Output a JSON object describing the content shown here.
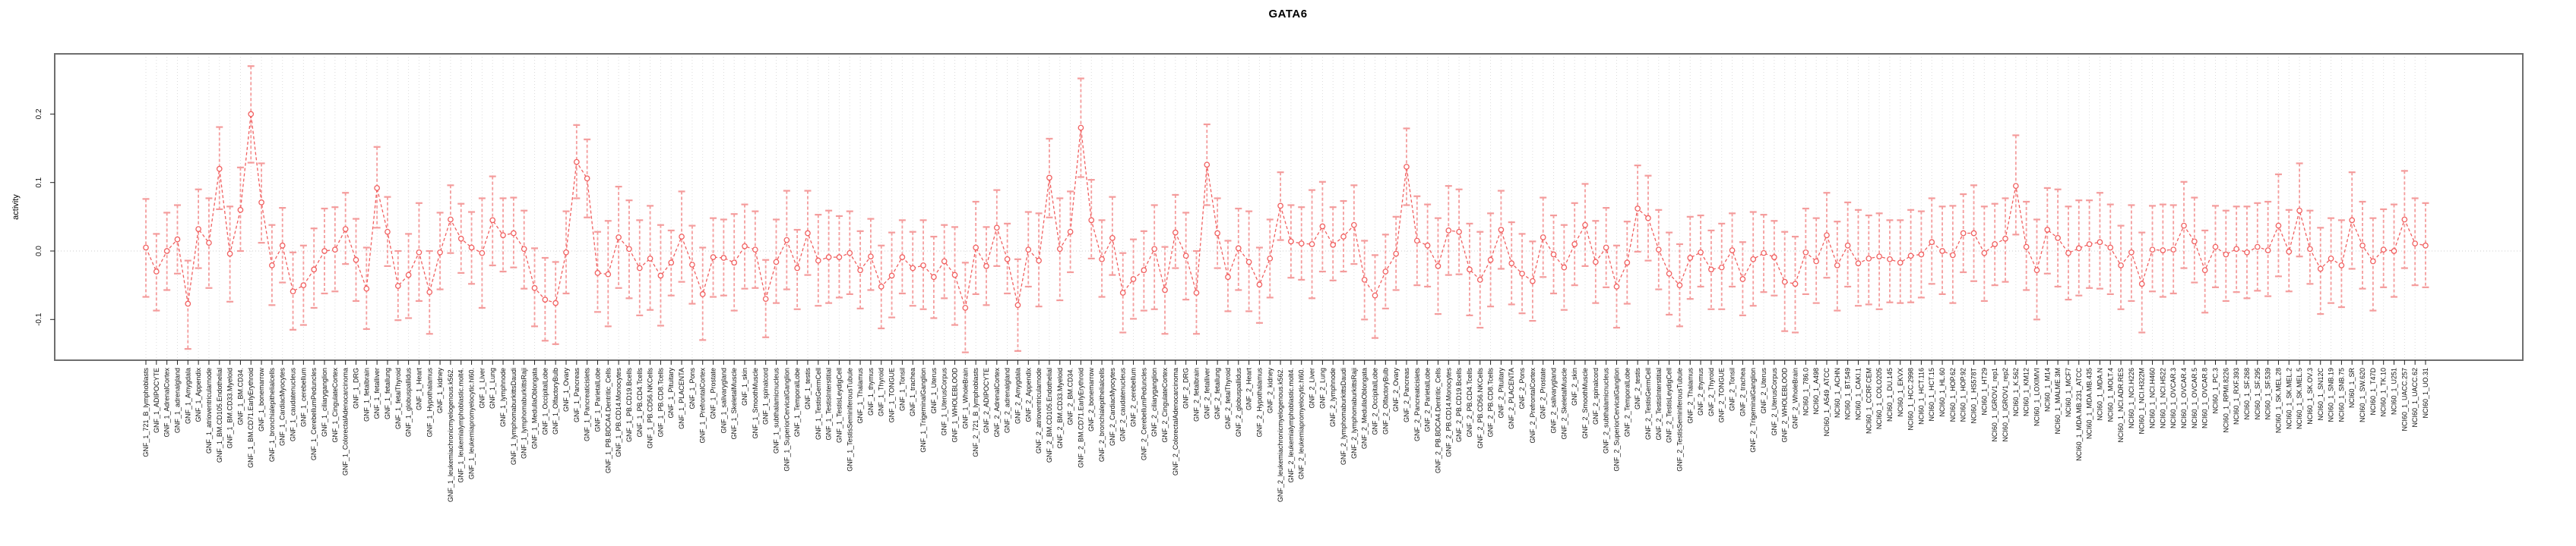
{
  "chart_data": {
    "type": "line",
    "title": "GATA6",
    "xlabel": "",
    "ylabel": "activity",
    "yticks": [
      -0.1,
      0.0,
      0.1,
      0.2
    ],
    "ylim": [
      -0.159,
      0.288
    ],
    "legend": "none",
    "grid": "dotted vertical line per category; dotted horizontal line at 0",
    "point_style": "open circle with dashed error bars (caps)",
    "colors": {
      "series": "#f16060",
      "error_bar": "#f49c9c",
      "grid": "#dcdcdc",
      "zero_line": "#d8d8d8",
      "box": "#6e6e6e",
      "tick": "#222222",
      "label": "#111111"
    },
    "categories": [
      "GNF_1_721_B_lymphoblasts",
      "GNF_1_ADIPOCYTE",
      "GNF_1_AdrenalCortex",
      "GNF_1_adrenalgland",
      "GNF_1_Amygdala",
      "GNF_1_Appendix",
      "GNF_1_atrioventricularnode",
      "GNF_1_BM.CD105.Endothelial",
      "GNF_1_BM.CD33.Myeloid",
      "GNF_1_BM.CD34.",
      "GNF_1_BM.CD71.EarlyErythroid",
      "GNF_1_bonemarrow",
      "GNF_1_bronchialepithelialcells",
      "GNF_1_CardiacMyocytes",
      "GNF_1_caudatenucleus",
      "GNF_1_cerebellum",
      "GNF_1_CerebellumPeduncles",
      "GNF_1_ciliaryganglion",
      "GNF_1_CingulateCortex",
      "GNF_1_ColorectalAdenocarcinoma",
      "GNF_1_DRG",
      "GNF_1_fetalbrain",
      "GNF_1_fetalliver",
      "GNF_1_fetallung",
      "GNF_1_fetalThyroid",
      "GNF_1_globuspallidus",
      "GNF_1_Heart",
      "GNF_1_Hypothalamus",
      "GNF_1_kidney",
      "GNF_1_leukemiachronicmyelogenous.k562.",
      "GNF_1_leukemialymphoblastic.molt4.",
      "GNF_1_leukemiapromyelocytic.hl60.",
      "GNF_1_Liver",
      "GNF_1_Lung",
      "GNF_1_lymphnode",
      "GNF_1_lymphomaburkittsDaudi",
      "GNF_1_lymphomaburkittsRaji",
      "GNF_1_MedullaOblongata",
      "GNF_1_OccipitalLobe",
      "GNF_1_OlfactoryBulb",
      "GNF_1_Ovary",
      "GNF_1_Pancreas",
      "GNF_1_Pancreaticislets",
      "GNF_1_ParietalLobe",
      "GNF_1_PB.BDCA4.Dentritic_Cells",
      "GNF_1_PB.CD14.Monocytes",
      "GNF_1_PB.CD19.Bcells",
      "GNF_1_PB.CD4.Tcells",
      "GNF_1_PB.CD56.NKCells",
      "GNF_1_PB.CD8.Tcells",
      "GNF_1_Pituitary",
      "GNF_1_PLACENTA",
      "GNF_1_Pons",
      "GNF_1_PrefrontalCortex",
      "GNF_1_Prostate",
      "GNF_1_salivarygland",
      "GNF_1_SkeletalMuscle",
      "GNF_1_skin",
      "GNF_1_SmoothMuscle",
      "GNF_1_spinalcord",
      "GNF_1_subthalamicnucleus",
      "GNF_1_SuperiorCervicalGanglion",
      "GNF_1_TemporalLobe",
      "GNF_1_testis",
      "GNF_1_TestisGermCell",
      "GNF_1_TestisInterstitial",
      "GNF_1_TestisLeydigCell",
      "GNF_1_TestisSeminiferousTubule",
      "GNF_1_Thalamus",
      "GNF_1_thymus",
      "GNF_1_Thyroid",
      "GNF_1_TONGUE",
      "GNF_1_Tonsil",
      "GNF_1_trachea",
      "GNF_1_TrigeminalGanglion",
      "GNF_1_Uterus",
      "GNF_1_UterusCorpus",
      "GNF_1_WHOLEBLOOD",
      "GNF_1_WholeBrain",
      "GNF_2_721_B_lymphoblasts",
      "GNF_2_ADIPOCYTE",
      "GNF_2_AdrenalCortex",
      "GNF_2_adrenalgland",
      "GNF_2_Amygdala",
      "GNF_2_Appendix",
      "GNF_2_atrioventricularnode",
      "GNF_2_BM.CD105.Endothelial",
      "GNF_2_BM.CD33.Myeloid",
      "GNF_2_BM.CD34.",
      "GNF_2_BM.CD71.EarlyErythroid",
      "GNF_2_bonemarrow",
      "GNF_2_bronchialepithelialcells",
      "GNF_2_CardiacMyocytes",
      "GNF_2_caudatenucleus",
      "GNF_2_cerebellum",
      "GNF_2_CerebellumPeduncles",
      "GNF_2_ciliaryganglion",
      "GNF_2_CingulateCortex",
      "GNF_2_ColorectalAdenocarcinoma",
      "GNF_2_DRG",
      "GNF_2_fetalbrain",
      "GNF_2_fetalliver",
      "GNF_2_fetallung",
      "GNF_2_fetalThyroid",
      "GNF_2_globuspallidus",
      "GNF_2_Heart",
      "GNF_2_Hypothalamus",
      "GNF_2_kidney",
      "GNF_2_leukemiachronicmyelogenous.k562.",
      "GNF_2_leukemialymphoblastic.molt4.",
      "GNF_2_leukemiapromyelocytic.hl60.",
      "GNF_2_Liver",
      "GNF_2_Lung",
      "GNF_2_lymphnode",
      "GNF_2_lymphomaburkittsDaudi",
      "GNF_2_lymphomaburkittsRaji",
      "GNF_2_MedullaOblongata",
      "GNF_2_OccipitalLobe",
      "GNF_2_OlfactoryBulb",
      "GNF_2_Ovary",
      "GNF_2_Pancreas",
      "GNF_2_Pancreaticislets",
      "GNF_2_ParietalLobe",
      "GNF_2_PB.BDCA4.Dentritic_Cells",
      "GNF_2_PB.CD14.Monocytes",
      "GNF_2_PB.CD19.Bcells",
      "GNF_2_PB.CD4.Tcells",
      "GNF_2_PB.CD56.NKCells",
      "GNF_2_PB.CD8.Tcells",
      "GNF_2_Pituitary",
      "GNF_2_PLACENTA",
      "GNF_2_Pons",
      "GNF_2_PrefrontalCortex",
      "GNF_2_Prostate",
      "GNF_2_salivarygland",
      "GNF_2_SkeletalMuscle",
      "GNF_2_skin",
      "GNF_2_SmoothMuscle",
      "GNF_2_spinalcord",
      "GNF_2_subthalamicnucleus",
      "GNF_2_SuperiorCervicalGanglion",
      "GNF_2_TemporalLobe",
      "GNF_2_testis",
      "GNF_2_TestisGermCell",
      "GNF_2_TestisInterstitial",
      "GNF_2_TestisLeydigCell",
      "GNF_2_TestisSeminiferousTubule",
      "GNF_2_Thalamus",
      "GNF_2_thymus",
      "GNF_2_Thyroid",
      "GNF_2_TONGUE",
      "GNF_2_Tonsil",
      "GNF_2_trachea",
      "GNF_2_TrigeminalGanglion",
      "GNF_2_Uterus",
      "GNF_2_UterusCorpus",
      "GNF_2_WHOLEBLOOD",
      "GNF_2_WholeBrain",
      "NCI60_1_786.0",
      "NCI60_1_A498",
      "NCI60_1_A549_ATCC",
      "NCI60_1_ACHN",
      "NCI60_1_BT.549",
      "NCI60_1_CAKI.1",
      "NCI60_1_CCRF.CEM",
      "NCI60_1_COLO205",
      "NCI60_1_DU.145",
      "NCI60_1_EKVX",
      "NCI60_1_HCC.2998",
      "NCI60_1_HCT.116",
      "NCI60_1_HCT.15",
      "NCI60_1_HL.60",
      "NCI60_1_HOP.62",
      "NCI60_1_HOP.92",
      "NCI60_1_HS578T",
      "NCI60_1_HT29",
      "NCI60_1_IGROV1_rep1",
      "NCI60_1_IGROV1_rep2",
      "NCI60_1_K.562",
      "NCI60_1_KM12",
      "NCI60_1_LOXIMVI",
      "NCI60_1_M14",
      "NCI60_1_MALME.3M",
      "NCI60_1_MCF7",
      "NCI60_1_MDA.MB.231_ATCC",
      "NCI60_1_MDA.MB.435",
      "NCI60_1_MDA.N",
      "NCI60_1_MOLT.4",
      "NCI60_1_NCI.ADR.RES",
      "NCI60_1_NCI.H226",
      "NCI60_1_NCI.H322M",
      "NCI60_1_NCI.H460",
      "NCI60_1_NCI.H522",
      "NCI60_1_OVCAR.3",
      "NCI60_1_OVCAR.4",
      "NCI60_1_OVCAR.5",
      "NCI60_1_OVCAR.8",
      "NCI60_1_PC.3",
      "NCI60_1_RPMI.8226",
      "NCI60_1_RXF.393",
      "NCI60_1_SF.268",
      "NCI60_1_SF.295",
      "NCI60_1_SF.539",
      "NCI60_1_SK.MEL.28",
      "NCI60_1_SK.MEL.2",
      "NCI60_1_SK.MEL.5",
      "NCI60_1_SK.OV.3",
      "NCI60_1_SN12C",
      "NCI60_1_SNB.19",
      "NCI60_1_SNB.75",
      "NCI60_1_SR",
      "NCI60_1_SW.620",
      "NCI60_1_T47D",
      "NCI60_1_TK.10",
      "NCI60_1_U251",
      "NCI60_1_UACC.257",
      "NCI60_1_UACC.62",
      "NCI60_1_UO.31"
    ],
    "values": [
      0.005,
      -0.03,
      0.0,
      0.017,
      -0.077,
      0.032,
      0.012,
      0.12,
      -0.004,
      0.06,
      0.2,
      0.071,
      -0.021,
      0.008,
      -0.059,
      -0.05,
      -0.027,
      0.0,
      0.002,
      0.032,
      -0.013,
      -0.055,
      0.092,
      0.028,
      -0.051,
      -0.035,
      -0.002,
      -0.06,
      -0.002,
      0.046,
      0.018,
      0.005,
      -0.003,
      0.045,
      0.023,
      0.026,
      0.003,
      -0.054,
      -0.071,
      -0.076,
      -0.002,
      0.13,
      0.106,
      -0.032,
      -0.034,
      0.02,
      0.003,
      -0.025,
      -0.011,
      -0.036,
      -0.017,
      0.021,
      -0.02,
      -0.063,
      -0.009,
      -0.01,
      -0.017,
      0.007,
      0.002,
      -0.07,
      -0.016,
      0.016,
      -0.025,
      0.026,
      -0.014,
      -0.009,
      -0.009,
      -0.003,
      -0.028,
      -0.008,
      -0.052,
      -0.036,
      -0.009,
      -0.025,
      -0.021,
      -0.038,
      -0.015,
      -0.035,
      -0.083,
      0.005,
      -0.022,
      0.034,
      -0.012,
      -0.079,
      0.002,
      -0.014,
      0.107,
      0.003,
      0.028,
      0.18,
      0.045,
      -0.012,
      0.019,
      -0.061,
      -0.041,
      -0.028,
      0.003,
      -0.057,
      0.027,
      -0.007,
      -0.061,
      0.126,
      0.026,
      -0.038,
      0.004,
      -0.016,
      -0.049,
      -0.011,
      0.066,
      0.014,
      0.011,
      0.01,
      0.036,
      0.009,
      0.021,
      0.038,
      -0.042,
      -0.065,
      -0.03,
      -0.004,
      0.123,
      0.015,
      0.008,
      -0.022,
      0.03,
      0.028,
      -0.027,
      -0.042,
      -0.013,
      0.031,
      -0.018,
      -0.033,
      -0.044,
      0.02,
      -0.005,
      -0.024,
      0.01,
      0.038,
      -0.016,
      0.005,
      -0.052,
      -0.017,
      0.062,
      0.048,
      0.002,
      -0.033,
      -0.05,
      -0.01,
      -0.002,
      -0.027,
      -0.024,
      0.001,
      -0.041,
      -0.012,
      -0.003,
      -0.009,
      -0.045,
      -0.048,
      -0.002,
      -0.015,
      0.023,
      -0.021,
      0.008,
      -0.018,
      -0.011,
      -0.008,
      -0.012,
      -0.017,
      -0.007,
      -0.005,
      0.013,
      0.0,
      -0.006,
      0.026,
      0.026,
      -0.003,
      0.01,
      0.018,
      0.095,
      0.006,
      -0.028,
      0.031,
      0.019,
      -0.003,
      0.004,
      0.01,
      0.013,
      0.005,
      -0.021,
      -0.002,
      -0.048,
      0.002,
      0.001,
      0.002,
      0.037,
      0.014,
      -0.028,
      0.006,
      -0.005,
      0.003,
      -0.002,
      0.006,
      0.001,
      0.037,
      -0.001,
      0.059,
      0.003,
      -0.026,
      -0.011,
      -0.021,
      0.045,
      0.008,
      -0.015,
      0.002,
      0.0,
      0.046,
      0.011,
      0.008
    ],
    "err_hi": [
      0.076,
      0.025,
      0.056,
      0.067,
      -0.014,
      0.09,
      0.077,
      0.181,
      0.065,
      0.122,
      0.27,
      0.128,
      0.038,
      0.063,
      -0.002,
      0.008,
      0.033,
      0.062,
      0.064,
      0.085,
      0.047,
      0.005,
      0.152,
      0.079,
      0.0,
      0.025,
      0.07,
      0.0,
      0.056,
      0.096,
      0.069,
      0.057,
      0.077,
      0.109,
      0.077,
      0.078,
      0.059,
      0.004,
      -0.01,
      -0.016,
      0.058,
      0.184,
      0.163,
      0.028,
      0.044,
      0.094,
      0.074,
      0.045,
      0.066,
      0.038,
      0.03,
      0.087,
      0.037,
      0.005,
      0.048,
      0.046,
      0.054,
      0.068,
      0.058,
      -0.013,
      0.046,
      0.088,
      0.031,
      0.088,
      0.053,
      0.059,
      0.051,
      0.058,
      0.029,
      0.047,
      0.008,
      0.027,
      0.045,
      0.028,
      0.045,
      0.021,
      0.038,
      0.035,
      -0.017,
      0.072,
      0.035,
      0.089,
      0.04,
      -0.012,
      0.057,
      0.055,
      0.164,
      0.077,
      0.087,
      0.252,
      0.104,
      0.045,
      0.079,
      -0.003,
      0.017,
      0.029,
      0.067,
      0.006,
      0.082,
      0.056,
      0.0,
      0.185,
      0.077,
      0.015,
      0.062,
      0.058,
      0.005,
      0.046,
      0.115,
      0.067,
      0.064,
      0.089,
      0.101,
      0.064,
      0.073,
      0.096,
      0.015,
      -0.006,
      0.024,
      0.05,
      0.179,
      0.08,
      0.068,
      0.048,
      0.095,
      0.09,
      0.04,
      0.028,
      0.055,
      0.088,
      0.042,
      0.025,
      0.014,
      0.078,
      0.052,
      0.038,
      0.07,
      0.098,
      0.044,
      0.063,
      0.008,
      0.043,
      0.125,
      0.11,
      0.06,
      0.027,
      0.01,
      0.05,
      0.052,
      0.03,
      0.04,
      0.055,
      0.013,
      0.057,
      0.053,
      0.044,
      0.028,
      0.021,
      0.062,
      0.048,
      0.085,
      0.043,
      0.071,
      0.06,
      0.052,
      0.055,
      0.045,
      0.045,
      0.06,
      0.058,
      0.077,
      0.065,
      0.066,
      0.083,
      0.096,
      0.065,
      0.069,
      0.077,
      0.169,
      0.072,
      0.046,
      0.092,
      0.09,
      0.065,
      0.074,
      0.074,
      0.085,
      0.068,
      0.037,
      0.067,
      0.027,
      0.066,
      0.068,
      0.067,
      0.101,
      0.078,
      0.03,
      0.066,
      0.059,
      0.065,
      0.065,
      0.07,
      0.072,
      0.112,
      0.06,
      0.128,
      0.059,
      0.034,
      0.048,
      0.045,
      0.115,
      0.072,
      0.048,
      0.061,
      0.068,
      0.117,
      0.077,
      0.07
    ],
    "err_lo": [
      -0.067,
      -0.087,
      -0.057,
      -0.033,
      -0.143,
      -0.025,
      -0.054,
      0.061,
      -0.074,
      0.0,
      0.129,
      0.012,
      -0.079,
      -0.046,
      -0.115,
      -0.108,
      -0.083,
      -0.062,
      -0.059,
      -0.019,
      -0.073,
      -0.114,
      0.034,
      -0.022,
      -0.101,
      -0.098,
      -0.073,
      -0.121,
      -0.056,
      -0.003,
      -0.032,
      -0.048,
      -0.083,
      -0.021,
      -0.03,
      -0.024,
      -0.055,
      -0.11,
      -0.131,
      -0.136,
      -0.062,
      0.077,
      0.049,
      -0.089,
      -0.11,
      -0.054,
      -0.069,
      -0.094,
      -0.086,
      -0.109,
      -0.065,
      -0.045,
      -0.077,
      -0.13,
      -0.067,
      -0.065,
      -0.087,
      -0.055,
      -0.054,
      -0.126,
      -0.076,
      -0.056,
      -0.085,
      -0.035,
      -0.08,
      -0.076,
      -0.068,
      -0.063,
      -0.084,
      -0.057,
      -0.113,
      -0.097,
      -0.062,
      -0.08,
      -0.085,
      -0.098,
      -0.069,
      -0.108,
      -0.148,
      -0.063,
      -0.079,
      -0.022,
      -0.062,
      -0.146,
      -0.052,
      -0.081,
      0.049,
      -0.072,
      -0.031,
      0.108,
      -0.011,
      -0.067,
      -0.035,
      -0.119,
      -0.099,
      -0.087,
      -0.085,
      -0.121,
      -0.025,
      -0.071,
      -0.121,
      0.067,
      -0.025,
      -0.088,
      -0.057,
      -0.088,
      -0.105,
      -0.068,
      0.016,
      -0.039,
      -0.042,
      -0.069,
      -0.03,
      -0.043,
      -0.03,
      -0.019,
      -0.1,
      -0.127,
      -0.084,
      -0.057,
      0.067,
      -0.05,
      -0.052,
      -0.092,
      -0.035,
      -0.034,
      -0.094,
      -0.112,
      -0.081,
      -0.026,
      -0.078,
      -0.091,
      -0.102,
      -0.038,
      -0.062,
      -0.086,
      -0.05,
      -0.022,
      -0.076,
      -0.053,
      -0.112,
      -0.077,
      -0.001,
      -0.014,
      -0.056,
      -0.093,
      -0.11,
      -0.07,
      -0.052,
      -0.085,
      -0.085,
      -0.052,
      -0.094,
      -0.08,
      -0.06,
      -0.065,
      -0.117,
      -0.119,
      -0.063,
      -0.076,
      -0.039,
      -0.087,
      -0.052,
      -0.08,
      -0.078,
      -0.085,
      -0.075,
      -0.076,
      -0.075,
      -0.068,
      -0.048,
      -0.063,
      -0.076,
      -0.031,
      -0.044,
      -0.073,
      -0.05,
      -0.045,
      0.024,
      -0.057,
      -0.1,
      -0.033,
      -0.052,
      -0.071,
      -0.065,
      -0.054,
      -0.055,
      -0.063,
      -0.085,
      -0.073,
      -0.119,
      -0.059,
      -0.067,
      -0.062,
      -0.025,
      -0.046,
      -0.09,
      -0.053,
      -0.073,
      -0.06,
      -0.069,
      -0.058,
      -0.066,
      -0.037,
      -0.059,
      -0.008,
      -0.048,
      -0.092,
      -0.076,
      -0.082,
      -0.026,
      -0.055,
      -0.087,
      -0.053,
      -0.067,
      -0.025,
      -0.05,
      -0.053
    ]
  }
}
